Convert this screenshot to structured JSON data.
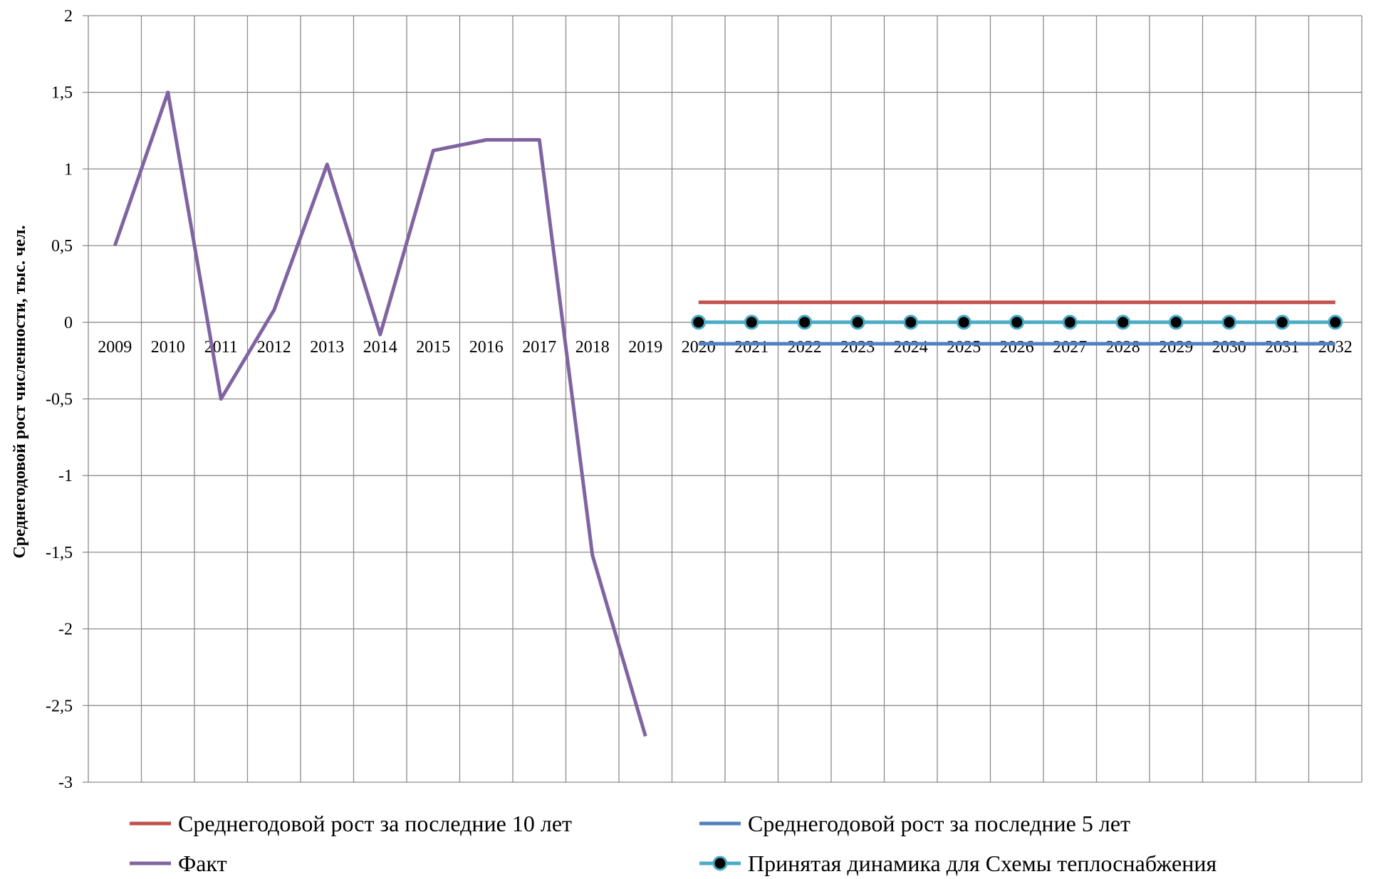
{
  "chart_data": {
    "type": "line",
    "title": "",
    "xlabel": "",
    "ylabel": "Среднегодовой рост численности, тыс. чел.",
    "ylim": [
      -3,
      2
    ],
    "ytick_values": [
      -3,
      -2.5,
      -2,
      -1.5,
      -1,
      -0.5,
      0,
      0.5,
      1,
      1.5,
      2
    ],
    "ytick_labels": [
      "-3",
      "-2,5",
      "-2",
      "-1,5",
      "-1",
      "-0,5",
      "0",
      "0,5",
      "1",
      "1,5",
      "2"
    ],
    "categories": [
      "2009",
      "2010",
      "2011",
      "2012",
      "2013",
      "2014",
      "2015",
      "2016",
      "2017",
      "2018",
      "2019",
      "2020",
      "2021",
      "2022",
      "2023",
      "2024",
      "2025",
      "2026",
      "2027",
      "2028",
      "2029",
      "2030",
      "2031",
      "2032"
    ],
    "grid": true,
    "legend_position": "bottom",
    "series": [
      {
        "name": "Среднегодовой рост за последние 10 лет",
        "color": "#C0504D",
        "marker": "none",
        "values": [
          null,
          null,
          null,
          null,
          null,
          null,
          null,
          null,
          null,
          null,
          null,
          0.13,
          0.13,
          0.13,
          0.13,
          0.13,
          0.13,
          0.13,
          0.13,
          0.13,
          0.13,
          0.13,
          0.13,
          0.13
        ]
      },
      {
        "name": "Среднегодовой рост за последние 5 лет",
        "color": "#4F81BD",
        "marker": "none",
        "values": [
          null,
          null,
          null,
          null,
          null,
          null,
          null,
          null,
          null,
          null,
          null,
          -0.14,
          -0.14,
          -0.14,
          -0.14,
          -0.14,
          -0.14,
          -0.14,
          -0.14,
          -0.14,
          -0.14,
          -0.14,
          -0.14,
          -0.14
        ]
      },
      {
        "name": "Факт",
        "color": "#8064A2",
        "marker": "none",
        "values": [
          0.5,
          1.5,
          -0.5,
          0.08,
          1.03,
          -0.08,
          1.12,
          1.19,
          1.19,
          -1.52,
          -2.7,
          null,
          null,
          null,
          null,
          null,
          null,
          null,
          null,
          null,
          null,
          null,
          null,
          null
        ]
      },
      {
        "name": "Принятая динамика для Схемы теплоснабжения",
        "color": "#4BACC6",
        "marker": "circle",
        "marker_color": "#000000",
        "values": [
          null,
          null,
          null,
          null,
          null,
          null,
          null,
          null,
          null,
          null,
          null,
          0,
          0,
          0,
          0,
          0,
          0,
          0,
          0,
          0,
          0,
          0,
          0,
          0
        ]
      }
    ]
  }
}
